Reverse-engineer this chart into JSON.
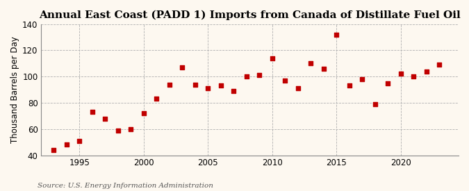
{
  "title": "Annual East Coast (PADD 1) Imports from Canada of Distillate Fuel Oil",
  "ylabel": "Thousand Barrels per Day",
  "source": "Source: U.S. Energy Information Administration",
  "years": [
    1993,
    1994,
    1995,
    1996,
    1997,
    1998,
    1999,
    2000,
    2001,
    2002,
    2003,
    2004,
    2005,
    2006,
    2007,
    2008,
    2009,
    2010,
    2011,
    2012,
    2013,
    2014,
    2015,
    2016,
    2017,
    2018,
    2019,
    2020,
    2021,
    2022,
    2023
  ],
  "values": [
    44,
    48,
    51,
    73,
    68,
    59,
    60,
    72,
    83,
    94,
    107,
    94,
    91,
    93,
    89,
    100,
    101,
    114,
    97,
    91,
    110,
    106,
    132,
    93,
    98,
    79,
    95,
    102,
    100,
    104,
    109
  ],
  "marker_color": "#c00000",
  "marker_size": 18,
  "bg_color": "#fdf8f0",
  "grid_color": "#b0b0b0",
  "spine_color": "#888888",
  "ylim": [
    40,
    140
  ],
  "yticks": [
    40,
    60,
    80,
    100,
    120,
    140
  ],
  "xticks": [
    1995,
    2000,
    2005,
    2010,
    2015,
    2020
  ],
  "xlim": [
    1992.0,
    2024.5
  ],
  "title_fontsize": 11,
  "label_fontsize": 8.5,
  "tick_fontsize": 8.5,
  "source_fontsize": 7.5
}
